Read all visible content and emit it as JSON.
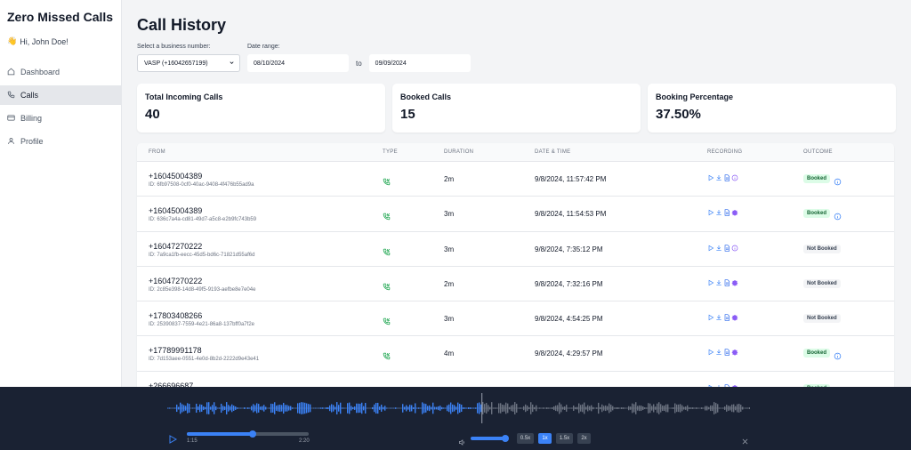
{
  "sidebar": {
    "brand": "Zero Missed Calls",
    "greeting": "Hi, John Doe!",
    "items": [
      {
        "label": "Dashboard",
        "icon": "home-icon"
      },
      {
        "label": "Calls",
        "icon": "phone-icon"
      },
      {
        "label": "Billing",
        "icon": "card-icon"
      },
      {
        "label": "Profile",
        "icon": "user-icon"
      }
    ],
    "active": "Calls"
  },
  "header": {
    "title": "Call History"
  },
  "filters": {
    "business_label": "Select a business number:",
    "business_value": "VASP (+16042657199)",
    "date_label": "Date range:",
    "date_from": "08/10/2024",
    "to_label": "to",
    "date_to": "09/09/2024"
  },
  "stats": [
    {
      "label": "Total Incoming Calls",
      "value": "40"
    },
    {
      "label": "Booked Calls",
      "value": "15"
    },
    {
      "label": "Booking Percentage",
      "value": "37.50%"
    }
  ],
  "table": {
    "columns": [
      "FROM",
      "TYPE",
      "DURATION",
      "DATE & TIME",
      "RECORDING",
      "OUTCOME"
    ],
    "rows": [
      {
        "from": "+16045004389",
        "id": "ID: 6fb97508-0cf0-40ac-9408-4f476b55ad9a",
        "duration": "2m",
        "datetime": "9/8/2024, 11:57:42 PM",
        "rec_last": "info",
        "outcome": "Booked"
      },
      {
        "from": "+16045004389",
        "id": "ID: 636c7a4a-cd81-49d7-a5c8-e2b9fc743b59",
        "duration": "3m",
        "datetime": "9/8/2024, 11:54:53 PM",
        "rec_last": "gear",
        "outcome": "Booked"
      },
      {
        "from": "+16047270222",
        "id": "ID: 7a9ca1fb-eecc-45d5-bd6c-71821d55af6d",
        "duration": "3m",
        "datetime": "9/8/2024, 7:35:12 PM",
        "rec_last": "info",
        "outcome": "Not Booked"
      },
      {
        "from": "+16047270222",
        "id": "ID: 2c85e398-14d8-49f5-9193-aefbe8e7e04e",
        "duration": "2m",
        "datetime": "9/8/2024, 7:32:16 PM",
        "rec_last": "gear",
        "outcome": "Not Booked"
      },
      {
        "from": "+17803408266",
        "id": "ID: 25390837-7559-4e21-86a8-137bff0a7f2e",
        "duration": "3m",
        "datetime": "9/8/2024, 4:54:25 PM",
        "rec_last": "gear",
        "outcome": "Not Booked"
      },
      {
        "from": "+17789991178",
        "id": "ID: 7d153aee-0551-4e0d-8b2d-2222d9e43e41",
        "duration": "4m",
        "datetime": "9/8/2024, 4:29:57 PM",
        "rec_last": "gear",
        "outcome": "Booked"
      },
      {
        "from": "+266696687",
        "id": "",
        "duration": "",
        "datetime": "",
        "rec_last": "gear",
        "outcome": "Booked"
      }
    ]
  },
  "player": {
    "current_time": "1:15",
    "total_time": "2:20",
    "progress": 0.54,
    "volume": 0.9,
    "speeds": [
      "0.5x",
      "1x",
      "1.5x",
      "2x"
    ],
    "active_speed": "1x"
  },
  "colors": {
    "accent": "#3b82f6",
    "booked_bg": "#dcfce7",
    "booked_text": "#166534",
    "player_bg": "#1a2233"
  }
}
